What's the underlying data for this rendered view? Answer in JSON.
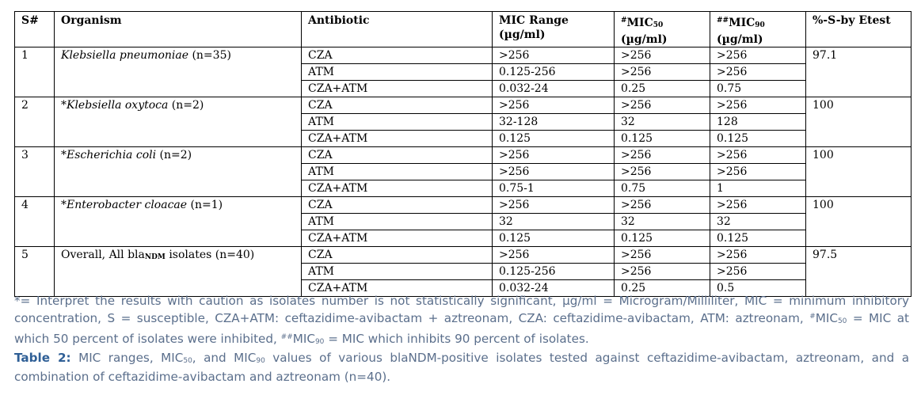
{
  "table": {
    "headers": {
      "sno": "S#",
      "organism": "Organism",
      "antibiotic": "Antibiotic",
      "mic_range": "MIC Range",
      "mic_range_unit": "(µg/ml)",
      "mic50_prefix": "#",
      "mic50_main": "MIC",
      "mic50_sub": "50",
      "mic50_unit": "(µg/ml)",
      "mic90_prefix": "##",
      "mic90_main": "MIC",
      "mic90_sub": "90",
      "mic90_unit": "(µg/ml)",
      "susceptible": "%-S-by Etest"
    },
    "groups": [
      {
        "sno": "1",
        "star": "",
        "name": "Klebsiella pneumoniae",
        "count": " (n=35)",
        "pct": "97.1",
        "rows": [
          {
            "ab": "CZA",
            "range": ">256",
            "mic50": ">256",
            "mic90": ">256"
          },
          {
            "ab": "ATM",
            "range": "0.125-256",
            "mic50": ">256",
            "mic90": ">256"
          },
          {
            "ab": "CZA+ATM",
            "range": "0.032-24",
            "mic50": "0.25",
            "mic90": "0.75"
          }
        ]
      },
      {
        "sno": "2",
        "star": "*",
        "name": "Klebsiella oxytoca",
        "count": " (n=2)",
        "pct": "100",
        "rows": [
          {
            "ab": "CZA",
            "range": ">256",
            "mic50": ">256",
            "mic90": ">256"
          },
          {
            "ab": "ATM",
            "range": "32-128",
            "mic50": "32",
            "mic90": "128"
          },
          {
            "ab": "CZA+ATM",
            "range": "0.125",
            "mic50": "0.125",
            "mic90": "0.125"
          }
        ]
      },
      {
        "sno": "3",
        "star": "*",
        "name": "Escherichia coli",
        "count": " (n=2)",
        "pct": "100",
        "rows": [
          {
            "ab": "CZA",
            "range": ">256",
            "mic50": ">256",
            "mic90": ">256"
          },
          {
            "ab": "ATM",
            "range": ">256",
            "mic50": ">256",
            "mic90": ">256"
          },
          {
            "ab": "CZA+ATM",
            "range": "0.75-1",
            "mic50": "0.75",
            "mic90": "1"
          }
        ]
      },
      {
        "sno": "4",
        "star": "*",
        "name": "Enterobacter cloacae",
        "count": " (n=1)",
        "pct": "100",
        "rows": [
          {
            "ab": "CZA",
            "range": ">256",
            "mic50": ">256",
            "mic90": ">256"
          },
          {
            "ab": "ATM",
            "range": "32",
            "mic50": "32",
            "mic90": "32"
          },
          {
            "ab": "CZA+ATM",
            "range": "0.125",
            "mic50": "0.125",
            "mic90": "0.125"
          }
        ]
      }
    ],
    "overall": {
      "sno": "5",
      "label_pre": "Overall, All bla",
      "label_sub": "NDM",
      "label_post": " isolates (n=40)",
      "pct": "97.5",
      "rows": [
        {
          "ab": "CZA",
          "range": ">256",
          "mic50": ">256",
          "mic90": ">256"
        },
        {
          "ab": "ATM",
          "range": "0.125-256",
          "mic50": ">256",
          "mic90": ">256"
        },
        {
          "ab": "CZA+ATM",
          "range": "0.032-24",
          "mic50": "0.25",
          "mic90": "0.5"
        }
      ]
    }
  },
  "footnote": {
    "part1": "*= Interpret the results with caution as isolates number is not statistically significant, µg/ml = Microgram/Milliliter, MIC = minimum inhibitory concentration, S = susceptible, CZA+ATM: ceftazidime-avibactam + aztreonam, CZA: ceftazidime-avibactam, ATM: aztreonam, ",
    "mark1": "#",
    "mic_a": "MIC",
    "sub_a": "50",
    "part2": " = MIC at which 50 percent of isolates were inhibited, ",
    "mark2": "##",
    "mic_b": "MIC",
    "sub_b": "90",
    "part3": " = MIC which inhibits 90 percent of isolates."
  },
  "caption": {
    "label": "Table 2:",
    "t1": " MIC ranges, MIC",
    "s1": "50",
    "t2": ", and MIC",
    "s2": "90",
    "t3": " values of various blaNDM-positive isolates tested against ceftazidime-avibactam, aztreonam, and a combination of ceftazidime-avibactam and aztreonam (n=40)."
  }
}
